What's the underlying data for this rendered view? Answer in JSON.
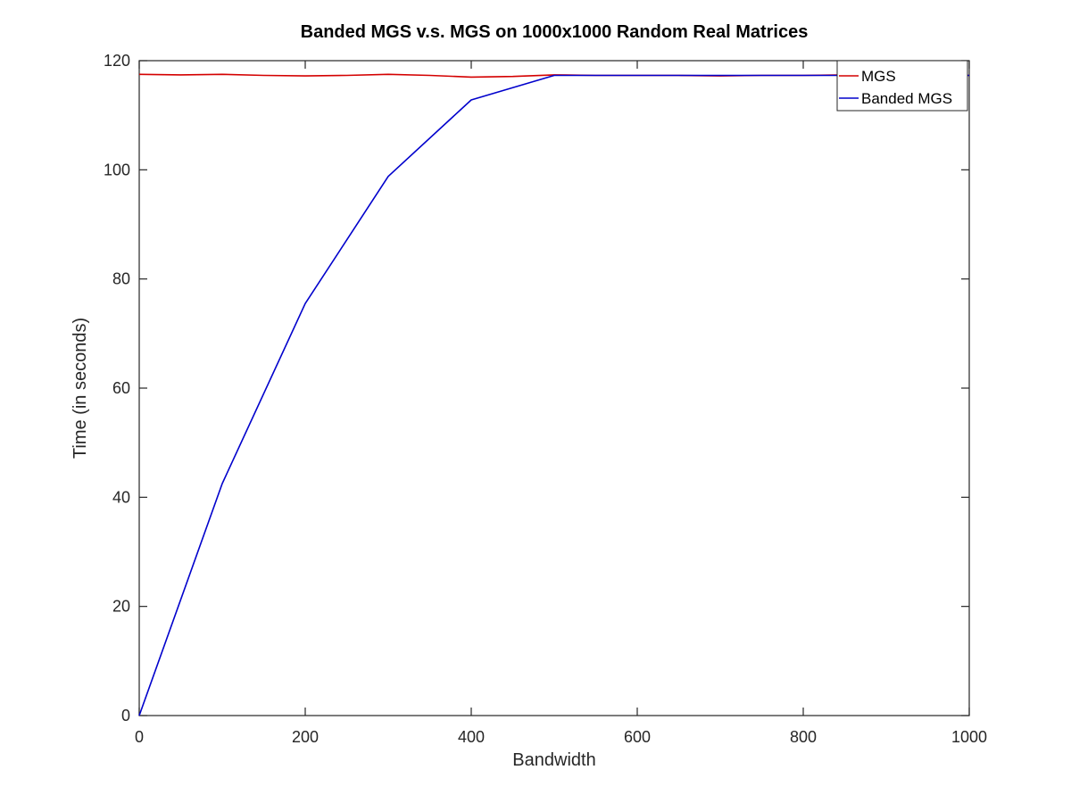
{
  "chart_data": {
    "type": "line",
    "title": "Banded MGS v.s. MGS on 1000x1000 Random Real Matrices",
    "xlabel": "Bandwidth",
    "ylabel": "Time (in seconds)",
    "xlim": [
      0,
      1000
    ],
    "ylim": [
      0,
      120
    ],
    "xticks": [
      0,
      200,
      400,
      600,
      800,
      1000
    ],
    "yticks": [
      0,
      20,
      40,
      60,
      80,
      100,
      120
    ],
    "grid": false,
    "legend_position": "top-right",
    "series": [
      {
        "name": "MGS",
        "color": "#d40000",
        "x": [
          0,
          50,
          100,
          150,
          200,
          250,
          300,
          350,
          400,
          450,
          500,
          550,
          600,
          650,
          700,
          750,
          800,
          850,
          900,
          950,
          1000
        ],
        "y": [
          117.5,
          117.4,
          117.5,
          117.3,
          117.2,
          117.3,
          117.5,
          117.3,
          117.0,
          117.1,
          117.4,
          117.3,
          117.3,
          117.3,
          117.2,
          117.3,
          117.3,
          117.4,
          117.3,
          117.3,
          117.3
        ]
      },
      {
        "name": "Banded MGS",
        "color": "#0000cc",
        "x": [
          0,
          100,
          200,
          300,
          400,
          500,
          600,
          700,
          800,
          900,
          1000
        ],
        "y": [
          0,
          42.5,
          75.5,
          98.8,
          112.8,
          117.3,
          117.3,
          117.3,
          117.3,
          117.3,
          117.3
        ]
      }
    ]
  }
}
